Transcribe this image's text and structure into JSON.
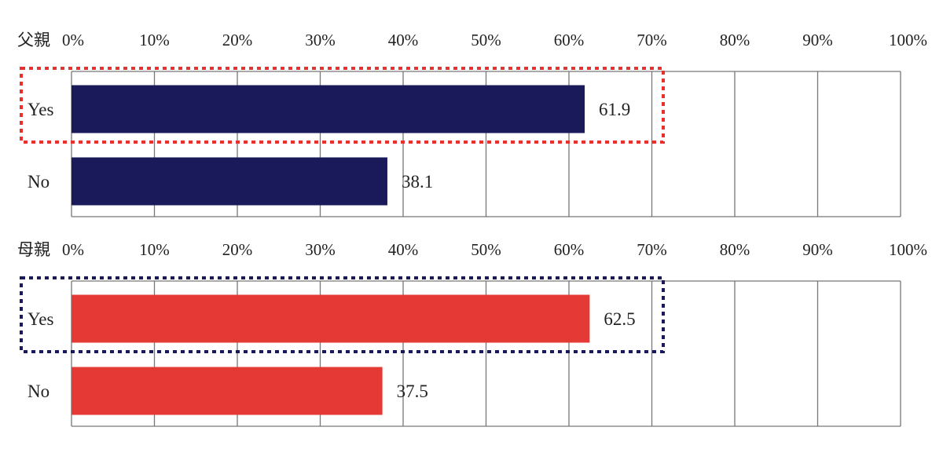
{
  "chart_data": [
    {
      "type": "bar",
      "orientation": "horizontal",
      "title": "父親",
      "categories": [
        "Yes",
        "No"
      ],
      "values": [
        61.9,
        38.1
      ],
      "value_labels": [
        "61.9",
        "38.1"
      ],
      "tick_labels": [
        "0%",
        "10%",
        "20%",
        "30%",
        "40%",
        "50%",
        "60%",
        "70%",
        "80%",
        "90%",
        "100%"
      ],
      "xlim": [
        0,
        100
      ],
      "bar_color": "#1a1a5a",
      "highlight_category": "Yes",
      "highlight_color": "#e8302c",
      "grid": true
    },
    {
      "type": "bar",
      "orientation": "horizontal",
      "title": "母親",
      "categories": [
        "Yes",
        "No"
      ],
      "values": [
        62.5,
        37.5
      ],
      "value_labels": [
        "62.5",
        "37.5"
      ],
      "tick_labels": [
        "0%",
        "10%",
        "20%",
        "30%",
        "40%",
        "50%",
        "60%",
        "70%",
        "80%",
        "90%",
        "100%"
      ],
      "xlim": [
        0,
        100
      ],
      "bar_color": "#e53935",
      "highlight_category": "Yes",
      "highlight_color": "#1a1a5a",
      "grid": true
    }
  ]
}
